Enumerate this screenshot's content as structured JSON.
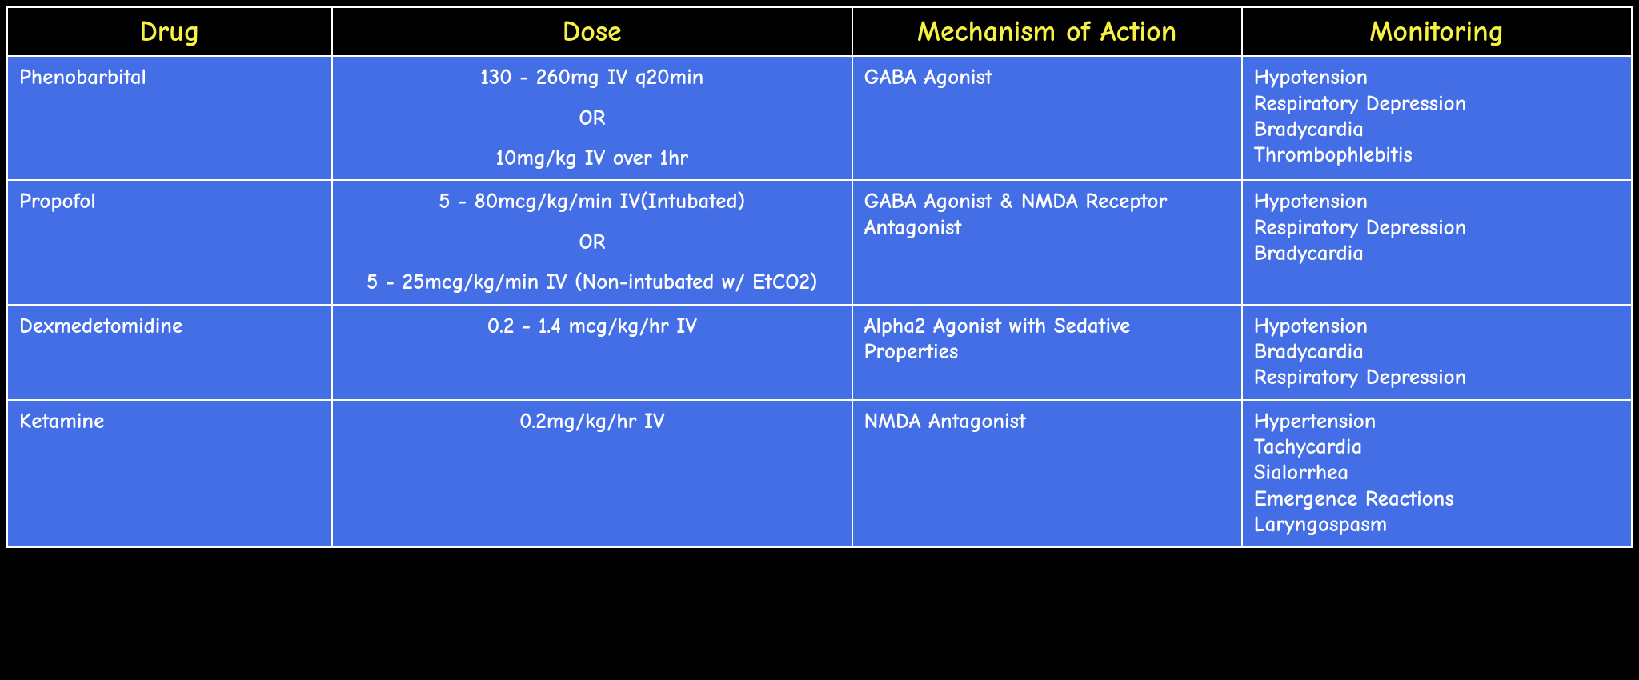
{
  "table": {
    "type": "table",
    "header_bg": "#000000",
    "header_text_color": "#f6f243",
    "cell_bg": "#446ee6",
    "cell_text_color": "#ffffff",
    "border_color": "#ffffff",
    "font_family": "Comic Sans MS",
    "header_fontsize_pt": 27,
    "cell_fontsize_pt": 20,
    "columns": [
      {
        "label": "Drug",
        "width_pct": 20,
        "align": "left"
      },
      {
        "label": "Dose",
        "width_pct": 32,
        "align": "center"
      },
      {
        "label": "Mechanism of Action",
        "width_pct": 24,
        "align": "left"
      },
      {
        "label": "Monitoring",
        "width_pct": 24,
        "align": "left"
      }
    ],
    "rows": [
      {
        "drug": "Phenobarbital",
        "dose_lines": [
          "130 - 260mg IV q20min",
          "",
          "OR",
          "",
          "10mg/kg IV over 1hr"
        ],
        "mechanism": "GABA Agonist",
        "monitoring_lines": [
          "Hypotension",
          "Respiratory Depression",
          "Bradycardia",
          "Thrombophlebitis"
        ]
      },
      {
        "drug": "Propofol",
        "dose_lines": [
          "5 - 80mcg/kg/min  IV(Intubated)",
          "",
          "OR",
          "",
          "5 - 25mcg/kg/min IV (Non-intubated w/ EtCO2)"
        ],
        "mechanism": "GABA Agonist & NMDA Receptor Antagonist",
        "monitoring_lines": [
          "Hypotension",
          "Respiratory Depression",
          "Bradycardia"
        ]
      },
      {
        "drug": "Dexmedetomidine",
        "dose_lines": [
          "0.2 - 1.4 mcg/kg/hr IV"
        ],
        "mechanism": "Alpha2 Agonist with Sedative Properties",
        "monitoring_lines": [
          "Hypotension",
          "Bradycardia",
          "Respiratory Depression"
        ]
      },
      {
        "drug": "Ketamine",
        "dose_lines": [
          "0.2mg/kg/hr IV"
        ],
        "mechanism": "NMDA Antagonist",
        "monitoring_lines": [
          "Hypertension",
          "Tachycardia",
          "Sialorrhea",
          "Emergence Reactions",
          "Laryngospasm"
        ]
      }
    ]
  }
}
